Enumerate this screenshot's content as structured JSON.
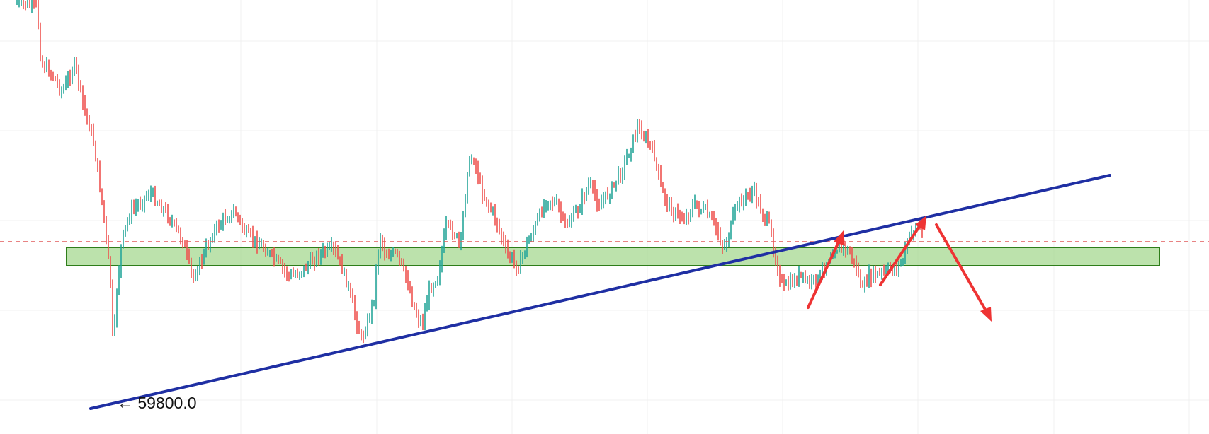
{
  "chart_data": {
    "type": "bar",
    "subtype": "ohlc",
    "grid": true,
    "colors": {
      "up": "#26a69a",
      "down": "#ef5350",
      "grid": "#f1f1f1",
      "trendline": "#1f2fa3",
      "support_zone_fill": "#a5d890",
      "support_zone_stroke": "#2e7d1a",
      "dashed_level": "#e05a5a",
      "arrow": "#ee3333"
    },
    "low_marker": {
      "price": 59800.0,
      "text": "← 59800.0"
    },
    "annotations": [
      "rising-trendline",
      "horizontal-support-zone",
      "dashed-horizontal-level",
      "up-arrow-1",
      "up-arrow-2",
      "down-arrow"
    ]
  }
}
